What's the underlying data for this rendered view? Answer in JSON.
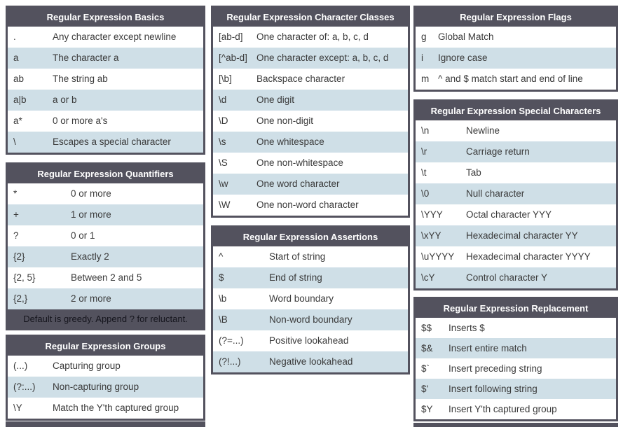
{
  "page": {
    "kind": "regular-expression-cheat-sheet",
    "background": "#ffffff"
  },
  "colors": {
    "header_bg": "#53525e",
    "table_border": "#53525e",
    "row_alt_bg": "#cfdfe7",
    "row_bg": "#ffffff",
    "header_text": "#ffffff",
    "cell_text": "#3a3a3a",
    "footer_text": "#15151d"
  },
  "tables": {
    "basics": {
      "title": "Regular Expression Basics",
      "rows": [
        [
          ".",
          "Any character except newline"
        ],
        [
          "a",
          "The character a"
        ],
        [
          "ab",
          "The string ab"
        ],
        [
          "a|b",
          "a or b"
        ],
        [
          "a*",
          "0 or more a's"
        ],
        [
          "\\",
          "Escapes a special character"
        ]
      ]
    },
    "quantifiers": {
      "title": "Regular Expression Quantifiers",
      "rows": [
        [
          "*",
          "0 or more"
        ],
        [
          "+",
          "1 or more"
        ],
        [
          "?",
          "0 or 1"
        ],
        [
          "{2}",
          "Exactly 2"
        ],
        [
          "{2, 5}",
          "Between 2 and 5"
        ],
        [
          "{2,}",
          "2 or more"
        ]
      ],
      "footer": "Default is greedy. Append ? for reluctant."
    },
    "groups": {
      "title": "Regular Expression Groups",
      "rows": [
        [
          "(...)",
          "Capturing group"
        ],
        [
          "(?:...)",
          "Non-capturing group"
        ],
        [
          "\\Y",
          "Match the Y'th captured group"
        ]
      ]
    },
    "character_classes": {
      "title": "Regular Expression Character Classes",
      "rows": [
        [
          "[ab-d]",
          "One character of: a, b, c, d"
        ],
        [
          "[^ab-d]",
          "One character except: a, b, c, d"
        ],
        [
          "[\\b]",
          "Backspace character"
        ],
        [
          "\\d",
          "One digit"
        ],
        [
          "\\D",
          "One non-digit"
        ],
        [
          "\\s",
          "One whitespace"
        ],
        [
          "\\S",
          "One non-whitespace"
        ],
        [
          "\\w",
          "One word character"
        ],
        [
          "\\W",
          "One non-word character"
        ]
      ]
    },
    "assertions": {
      "title": "Regular Expression Assertions",
      "rows": [
        [
          "^",
          "Start of string"
        ],
        [
          "$",
          "End of string"
        ],
        [
          "\\b",
          "Word boundary"
        ],
        [
          "\\B",
          "Non-word boundary"
        ],
        [
          "(?=...)",
          "Positive lookahead"
        ],
        [
          "(?!...)",
          "Negative lookahead"
        ]
      ]
    },
    "flags": {
      "title": "Regular Expression Flags",
      "rows": [
        [
          "g",
          "Global Match"
        ],
        [
          "i",
          "Ignore case"
        ],
        [
          "m",
          "^ and $ match start and end of line"
        ]
      ]
    },
    "special_characters": {
      "title": "Regular Expression Special Characters",
      "rows": [
        [
          "\\n",
          "Newline"
        ],
        [
          "\\r",
          "Carriage return"
        ],
        [
          "\\t",
          "Tab"
        ],
        [
          "\\0",
          "Null character"
        ],
        [
          "\\YYY",
          "Octal character YYY"
        ],
        [
          "\\xYY",
          "Hexadecimal character YY"
        ],
        [
          "\\uYYYY",
          "Hexadecimal character YYYY"
        ],
        [
          "\\cY",
          "Control character Y"
        ]
      ]
    },
    "replacement": {
      "title": "Regular Expression Replacement",
      "rows": [
        [
          "$$",
          "Inserts $"
        ],
        [
          "$&",
          "Insert entire match"
        ],
        [
          "$`",
          "Insert preceding string"
        ],
        [
          "$'",
          "Insert following string"
        ],
        [
          "$Y",
          "Insert Y'th captured group"
        ]
      ]
    }
  }
}
